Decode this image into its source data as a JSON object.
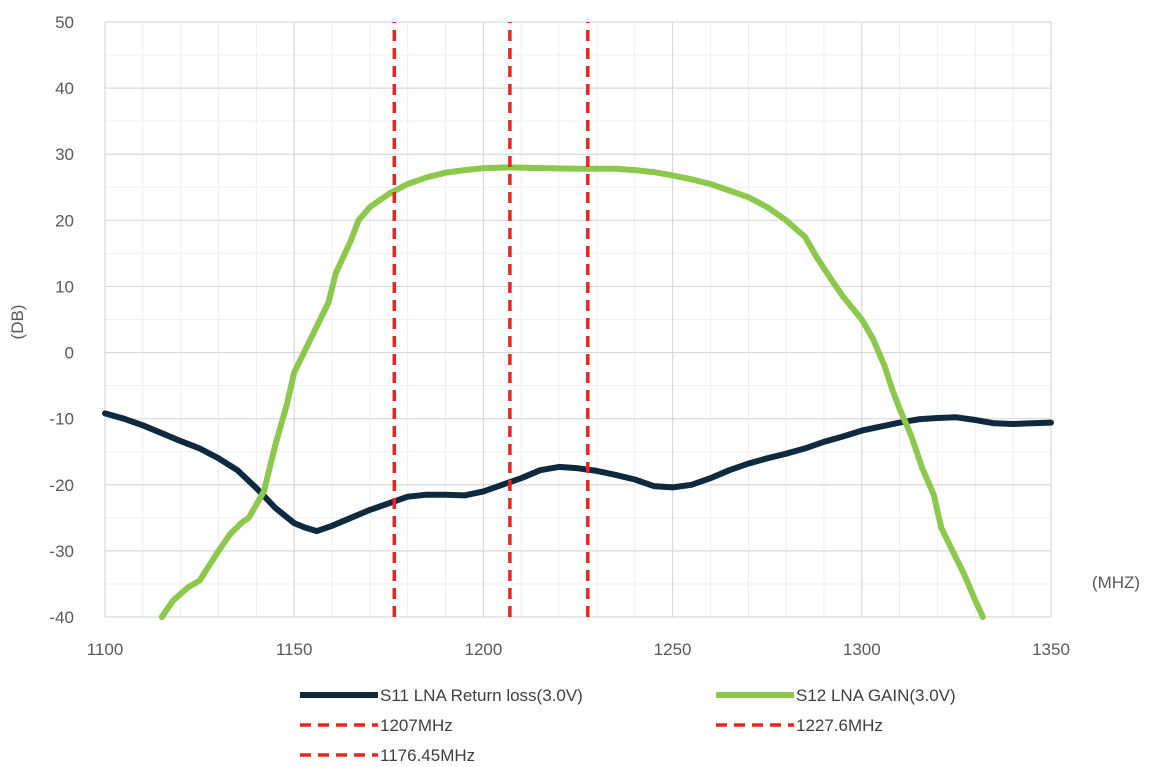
{
  "chart_data": {
    "type": "line",
    "title": "",
    "xlabel": "(MHZ)",
    "ylabel": "(DB)",
    "xlim": [
      1100,
      1350
    ],
    "ylim": [
      -40,
      50
    ],
    "x_ticks": [
      "1100",
      "1150",
      "1200",
      "1250",
      "1300",
      "1350"
    ],
    "y_ticks": [
      "50",
      "40",
      "30",
      "20",
      "10",
      "0",
      "-10",
      "-20",
      "-30",
      "-40"
    ],
    "grid": true,
    "legend_position": "bottom",
    "series": [
      {
        "name": "S11 LNA Return loss(3.0V)",
        "style": "solid",
        "color": "#0f2a3f",
        "points": [
          [
            1100,
            -9.2
          ],
          [
            1105,
            -10.0
          ],
          [
            1110,
            -11.0
          ],
          [
            1115,
            -12.2
          ],
          [
            1120,
            -13.4
          ],
          [
            1125,
            -14.5
          ],
          [
            1130,
            -16.0
          ],
          [
            1135,
            -17.8
          ],
          [
            1140,
            -20.5
          ],
          [
            1145,
            -23.5
          ],
          [
            1150,
            -25.8
          ],
          [
            1153,
            -26.5
          ],
          [
            1156,
            -27.0
          ],
          [
            1160,
            -26.2
          ],
          [
            1165,
            -25.0
          ],
          [
            1170,
            -23.8
          ],
          [
            1175,
            -22.8
          ],
          [
            1180,
            -21.8
          ],
          [
            1185,
            -21.5
          ],
          [
            1190,
            -21.5
          ],
          [
            1195,
            -21.6
          ],
          [
            1200,
            -21.0
          ],
          [
            1205,
            -20.0
          ],
          [
            1210,
            -19.0
          ],
          [
            1215,
            -17.8
          ],
          [
            1220,
            -17.3
          ],
          [
            1225,
            -17.5
          ],
          [
            1230,
            -17.9
          ],
          [
            1235,
            -18.5
          ],
          [
            1240,
            -19.2
          ],
          [
            1245,
            -20.2
          ],
          [
            1250,
            -20.4
          ],
          [
            1255,
            -20.0
          ],
          [
            1260,
            -19.0
          ],
          [
            1265,
            -17.8
          ],
          [
            1270,
            -16.8
          ],
          [
            1275,
            -16.0
          ],
          [
            1280,
            -15.3
          ],
          [
            1285,
            -14.5
          ],
          [
            1290,
            -13.5
          ],
          [
            1295,
            -12.7
          ],
          [
            1300,
            -11.8
          ],
          [
            1305,
            -11.2
          ],
          [
            1310,
            -10.6
          ],
          [
            1315,
            -10.1
          ],
          [
            1320,
            -9.9
          ],
          [
            1325,
            -9.8
          ],
          [
            1330,
            -10.2
          ],
          [
            1335,
            -10.7
          ],
          [
            1340,
            -10.8
          ],
          [
            1345,
            -10.7
          ],
          [
            1350,
            -10.6
          ]
        ]
      },
      {
        "name": "S12 LNA GAIN(3.0V)",
        "style": "solid",
        "color": "#8cc84b",
        "points": [
          [
            1115,
            -40.0
          ],
          [
            1118,
            -37.5
          ],
          [
            1122,
            -35.5
          ],
          [
            1125,
            -34.5
          ],
          [
            1130,
            -30.0
          ],
          [
            1133,
            -27.5
          ],
          [
            1136,
            -25.8
          ],
          [
            1138,
            -25.0
          ],
          [
            1142,
            -21.0
          ],
          [
            1145,
            -14.0
          ],
          [
            1148,
            -8.0
          ],
          [
            1150,
            -3.0
          ],
          [
            1153,
            0.5
          ],
          [
            1156,
            4.0
          ],
          [
            1159,
            7.5
          ],
          [
            1161,
            12.0
          ],
          [
            1163,
            14.5
          ],
          [
            1165,
            17.0
          ],
          [
            1167,
            20.0
          ],
          [
            1170,
            22.0
          ],
          [
            1175,
            24.0
          ],
          [
            1180,
            25.5
          ],
          [
            1185,
            26.5
          ],
          [
            1190,
            27.2
          ],
          [
            1195,
            27.6
          ],
          [
            1200,
            27.9
          ],
          [
            1207,
            28.0
          ],
          [
            1215,
            27.9
          ],
          [
            1225,
            27.8
          ],
          [
            1235,
            27.8
          ],
          [
            1240,
            27.6
          ],
          [
            1245,
            27.3
          ],
          [
            1250,
            26.8
          ],
          [
            1255,
            26.2
          ],
          [
            1260,
            25.5
          ],
          [
            1265,
            24.5
          ],
          [
            1270,
            23.5
          ],
          [
            1275,
            22.0
          ],
          [
            1280,
            20.0
          ],
          [
            1285,
            17.5
          ],
          [
            1288,
            14.5
          ],
          [
            1292,
            11.0
          ],
          [
            1295,
            8.5
          ],
          [
            1300,
            5.0
          ],
          [
            1303,
            2.0
          ],
          [
            1306,
            -2.0
          ],
          [
            1308,
            -5.5
          ],
          [
            1310,
            -8.5
          ],
          [
            1313,
            -12.5
          ],
          [
            1316,
            -17.5
          ],
          [
            1319,
            -21.5
          ],
          [
            1321,
            -26.5
          ],
          [
            1324,
            -30.0
          ],
          [
            1327,
            -33.5
          ],
          [
            1330,
            -37.5
          ],
          [
            1332,
            -40.0
          ]
        ]
      },
      {
        "name": "1207MHz",
        "style": "dashed",
        "color": "#e8251e",
        "x": 1207,
        "points": [
          [
            1207,
            -40
          ],
          [
            1207,
            50
          ]
        ]
      },
      {
        "name": "1227.6MHz",
        "style": "dashed",
        "color": "#e8251e",
        "x": 1227.6,
        "points": [
          [
            1227.6,
            -40
          ],
          [
            1227.6,
            50
          ]
        ]
      },
      {
        "name": "1176.45MHz",
        "style": "dashed",
        "color": "#e8251e",
        "x": 1176.45,
        "points": [
          [
            1176.45,
            -40
          ],
          [
            1176.45,
            50
          ]
        ]
      }
    ]
  }
}
